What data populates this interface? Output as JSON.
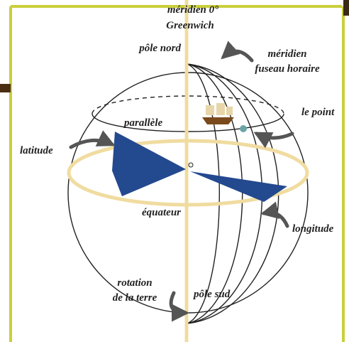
{
  "labels": {
    "meridian_zero": "méridien 0°",
    "greenwich": "Greenwich",
    "north_pole": "pôle nord",
    "meridian": "méridien",
    "time_zone": "fuseau horaire",
    "point": "le point",
    "parallel": "parallèle",
    "latitude": "latitude",
    "equator": "équateur",
    "longitude": "longitude",
    "rotation": "rotation",
    "of_earth": "de la terre",
    "south_pole": "pôle sud"
  }
}
